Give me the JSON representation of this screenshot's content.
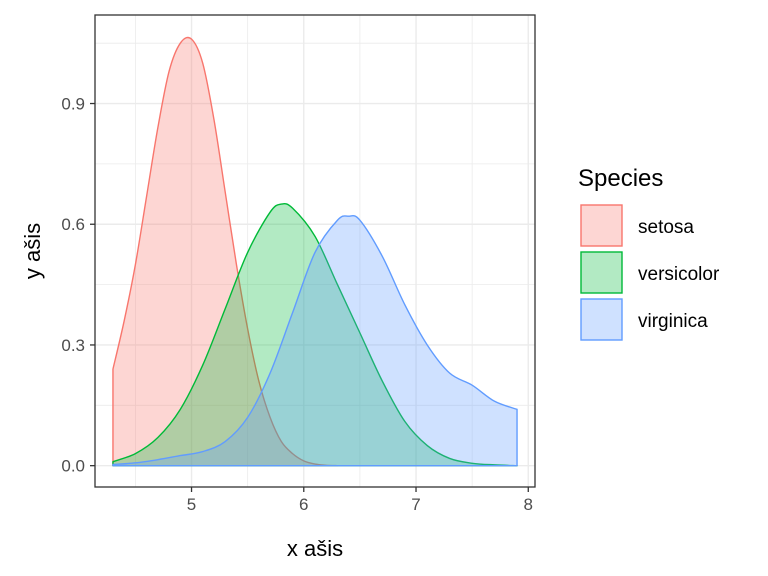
{
  "chart_data": {
    "type": "area",
    "xlabel": "x ašis",
    "ylabel": "y ašis",
    "xlim": [
      4.14,
      8.06
    ],
    "ylim": [
      -0.053,
      1.12
    ],
    "xticks": [
      5,
      6,
      7,
      8
    ],
    "xtick_labels": [
      "5",
      "6",
      "7",
      "8"
    ],
    "yticks": [
      0.0,
      0.3,
      0.6,
      0.9
    ],
    "ytick_labels": [
      "0.0",
      "0.3",
      "0.6",
      "0.9"
    ],
    "grid": true,
    "legend": {
      "title": "Species",
      "position": "right"
    },
    "series": [
      {
        "name": "setosa",
        "color": "#F8766D",
        "x": [
          4.3,
          4.4,
          4.5,
          4.6,
          4.7,
          4.8,
          4.9,
          5.0,
          5.1,
          5.2,
          5.3,
          5.4,
          5.5,
          5.6,
          5.7,
          5.8,
          5.9,
          6.0,
          6.1,
          6.2,
          6.3
        ],
        "y": [
          0.24,
          0.36,
          0.5,
          0.67,
          0.84,
          0.98,
          1.05,
          1.06,
          1.0,
          0.86,
          0.68,
          0.5,
          0.34,
          0.21,
          0.12,
          0.06,
          0.03,
          0.012,
          0.004,
          0.001,
          0.0
        ]
      },
      {
        "name": "versicolor",
        "color": "#00BA38",
        "x": [
          4.3,
          4.5,
          4.7,
          4.9,
          5.1,
          5.3,
          5.5,
          5.7,
          5.8,
          5.9,
          6.1,
          6.3,
          6.5,
          6.7,
          6.9,
          7.1,
          7.3,
          7.5,
          7.7,
          7.9
        ],
        "y": [
          0.01,
          0.03,
          0.07,
          0.14,
          0.25,
          0.39,
          0.53,
          0.63,
          0.65,
          0.64,
          0.57,
          0.45,
          0.33,
          0.21,
          0.11,
          0.05,
          0.018,
          0.006,
          0.002,
          0.0
        ]
      },
      {
        "name": "virginica",
        "color": "#619CFF",
        "x": [
          4.3,
          4.5,
          4.7,
          4.9,
          5.1,
          5.3,
          5.5,
          5.7,
          5.9,
          6.1,
          6.3,
          6.4,
          6.5,
          6.7,
          6.9,
          7.1,
          7.3,
          7.5,
          7.7,
          7.9
        ],
        "y": [
          0.003,
          0.007,
          0.015,
          0.025,
          0.035,
          0.06,
          0.12,
          0.23,
          0.38,
          0.53,
          0.61,
          0.62,
          0.61,
          0.52,
          0.4,
          0.3,
          0.23,
          0.2,
          0.16,
          0.14
        ]
      }
    ]
  }
}
